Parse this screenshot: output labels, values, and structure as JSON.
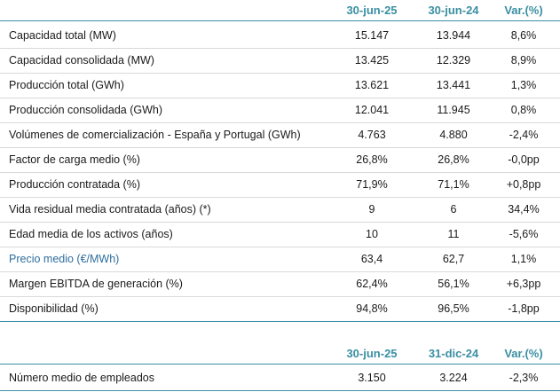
{
  "table1": {
    "headers": [
      "30-jun-25",
      "30-jun-24",
      "Var.(%)"
    ],
    "rows": [
      {
        "label": "Capacidad total (MW)",
        "v1": "15.147",
        "v2": "13.944",
        "v3": "8,6%"
      },
      {
        "label": "Capacidad consolidada (MW)",
        "v1": "13.425",
        "v2": "12.329",
        "v3": "8,9%"
      },
      {
        "label": "Producción total (GWh)",
        "v1": "13.621",
        "v2": "13.441",
        "v3": "1,3%"
      },
      {
        "label": "Producción consolidada (GWh)",
        "v1": "12.041",
        "v2": "11.945",
        "v3": "0,8%"
      },
      {
        "label": "Volúmenes de comercialización - España y Portugal (GWh)",
        "v1": "4.763",
        "v2": "4.880",
        "v3": "-2,4%"
      },
      {
        "label": "Factor de carga medio (%)",
        "v1": "26,8%",
        "v2": "26,8%",
        "v3": "-0,0pp"
      },
      {
        "label": "Producción contratada (%)",
        "v1": "71,9%",
        "v2": "71,1%",
        "v3": "+0,8pp"
      },
      {
        "label": "Vida residual media contratada (años) (*)",
        "v1": "9",
        "v2": "6",
        "v3": "34,4%"
      },
      {
        "label": "Edad media de los activos (años)",
        "v1": "10",
        "v2": "11",
        "v3": "-5,6%"
      },
      {
        "label": "Precio medio (€/MWh)",
        "v1": "63,4",
        "v2": "62,7",
        "v3": "1,1%"
      },
      {
        "label": "Margen EBITDA de generación (%)",
        "v1": "62,4%",
        "v2": "56,1%",
        "v3": "+6,3pp"
      },
      {
        "label": "Disponibilidad (%)",
        "v1": "94,8%",
        "v2": "96,5%",
        "v3": "-1,8pp"
      }
    ]
  },
  "table2": {
    "headers": [
      "30-jun-25",
      "31-dic-24",
      "Var.(%)"
    ],
    "rows": [
      {
        "label": "Número medio de empleados",
        "v1": "3.150",
        "v2": "3.224",
        "v3": "-2,3%"
      }
    ]
  },
  "colors": {
    "accent": "#3a8fa3",
    "highlight_label": "#2e6e9e",
    "rule": "#d9d9d9"
  }
}
